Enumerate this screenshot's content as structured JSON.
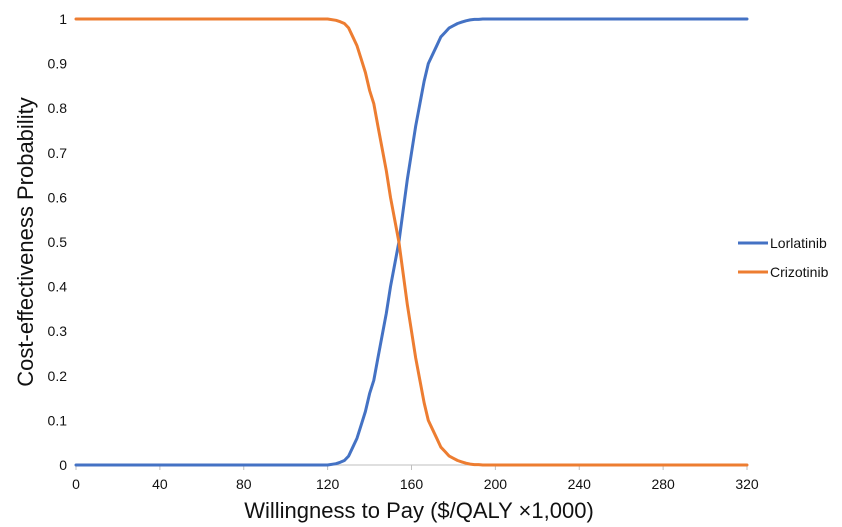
{
  "chart_data": {
    "type": "line",
    "title": "",
    "xlabel": "Willingness to Pay ($/QALY ×1,000)",
    "ylabel": "Cost-effectiveness Probability",
    "xlim": [
      0,
      320
    ],
    "ylim": [
      0,
      1
    ],
    "x_ticks": [
      "0",
      "40",
      "80",
      "120",
      "160",
      "200",
      "240",
      "280",
      "320"
    ],
    "y_ticks": [
      "0",
      "0.1",
      "0.2",
      "0.3",
      "0.4",
      "0.5",
      "0.6",
      "0.7",
      "0.8",
      "0.9",
      "1"
    ],
    "grid": false,
    "legend_position": "right",
    "x": [
      0,
      40,
      80,
      120,
      124,
      126,
      128,
      130,
      132,
      134,
      136,
      138,
      140,
      142,
      144,
      146,
      148,
      150,
      152,
      154,
      156,
      158,
      160,
      162,
      164,
      166,
      168,
      170,
      172,
      174,
      176,
      178,
      180,
      182,
      184,
      186,
      188,
      190,
      192,
      194,
      196,
      198,
      200,
      204,
      208,
      240,
      280,
      320
    ],
    "series": [
      {
        "name": "Lorlatinib",
        "color": "#4472C4",
        "values": [
          0,
          0,
          0,
          0,
          0.003,
          0.006,
          0.01,
          0.02,
          0.04,
          0.06,
          0.09,
          0.12,
          0.16,
          0.19,
          0.24,
          0.29,
          0.34,
          0.4,
          0.45,
          0.5,
          0.57,
          0.64,
          0.7,
          0.76,
          0.81,
          0.86,
          0.9,
          0.92,
          0.94,
          0.96,
          0.97,
          0.98,
          0.985,
          0.99,
          0.993,
          0.996,
          0.998,
          0.999,
          0.999,
          1,
          1,
          1,
          1,
          1,
          1,
          1,
          1,
          1
        ]
      },
      {
        "name": "Crizotinib",
        "color": "#ED7D31",
        "values": [
          1,
          1,
          1,
          1,
          0.997,
          0.994,
          0.99,
          0.98,
          0.96,
          0.94,
          0.91,
          0.88,
          0.84,
          0.81,
          0.76,
          0.71,
          0.66,
          0.6,
          0.55,
          0.5,
          0.43,
          0.36,
          0.3,
          0.24,
          0.19,
          0.14,
          0.1,
          0.08,
          0.06,
          0.04,
          0.03,
          0.02,
          0.015,
          0.01,
          0.007,
          0.004,
          0.002,
          0.001,
          0.001,
          0,
          0,
          0,
          0,
          0,
          0,
          0,
          0,
          0
        ]
      }
    ]
  }
}
